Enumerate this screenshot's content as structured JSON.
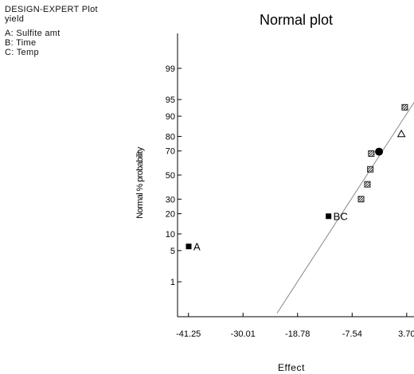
{
  "header": {
    "program": "DESIGN-EXPERT Plot",
    "response": "yield",
    "factors": [
      "A: Sulfite amt",
      "B: Time",
      "C: Temp"
    ]
  },
  "chart_data": {
    "type": "scatter",
    "title": "Normal plot",
    "xlabel": "Effect",
    "ylabel": "Normal % probability",
    "xlim": [
      -43.5,
      5.2
    ],
    "ylim_probability": [
      0.1,
      99.9
    ],
    "y_scale": "normal-probability",
    "x_ticks": [
      -41.25,
      -30.01,
      -18.78,
      -7.54,
      3.7
    ],
    "x_tick_labels": [
      "-41.25",
      "-30.01",
      "-18.78",
      "-7.54",
      "3.70"
    ],
    "y_ticks": [
      1,
      5,
      10,
      20,
      30,
      50,
      70,
      80,
      90,
      95,
      99
    ],
    "y_tick_labels": [
      "1",
      "5",
      "10",
      "20",
      "30",
      "50",
      "70",
      "80",
      "90",
      "95",
      "99"
    ],
    "grid": false,
    "fit_line": {
      "x": [
        -23.0,
        5.2
      ],
      "y": [
        0.13,
        94.3
      ]
    },
    "points": [
      {
        "x": -41.2,
        "y": 6.0,
        "marker": "filled-square",
        "label": "A"
      },
      {
        "x": -12.4,
        "y": 18.5,
        "marker": "filled-square",
        "label": "BC"
      },
      {
        "x": -5.7,
        "y": 30.0,
        "marker": "hatched-square",
        "label": ""
      },
      {
        "x": -4.4,
        "y": 42.0,
        "marker": "hatched-square",
        "label": ""
      },
      {
        "x": -3.8,
        "y": 55.0,
        "marker": "hatched-square",
        "label": ""
      },
      {
        "x": -3.6,
        "y": 68.0,
        "marker": "hatched-square",
        "label": ""
      },
      {
        "x": -2.0,
        "y": 69.5,
        "marker": "filled-circle",
        "label": ""
      },
      {
        "x": 2.6,
        "y": 81.5,
        "marker": "open-triangle",
        "label": ""
      },
      {
        "x": 3.3,
        "y": 93.0,
        "marker": "hatched-square",
        "label": ""
      }
    ]
  }
}
